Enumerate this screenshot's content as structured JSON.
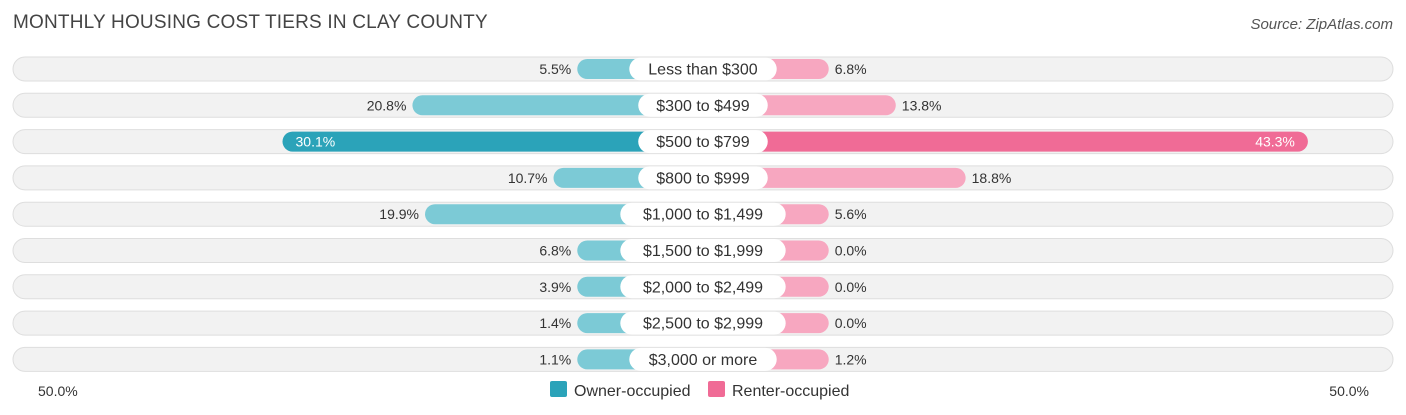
{
  "title": "MONTHLY HOUSING COST TIERS IN CLAY COUNTY",
  "source": "Source: ZipAtlas.com",
  "colors": {
    "owner_strong": "#2ba3b9",
    "owner_light": "#7ccad6",
    "renter_strong": "#f06b96",
    "renter_light": "#f7a7c0"
  },
  "chart_data": {
    "type": "bar",
    "orientation": "diverging-horizontal",
    "categories": [
      "Less than $300",
      "$300 to $499",
      "$500 to $799",
      "$800 to $999",
      "$1,000 to $1,499",
      "$1,500 to $1,999",
      "$2,000 to $2,499",
      "$2,500 to $2,999",
      "$3,000 or more"
    ],
    "series": [
      {
        "name": "Owner-occupied",
        "values": [
          5.5,
          20.8,
          30.1,
          10.7,
          19.9,
          6.8,
          3.9,
          1.4,
          1.1
        ],
        "labels": [
          "5.5%",
          "20.8%",
          "30.1%",
          "10.7%",
          "19.9%",
          "6.8%",
          "3.9%",
          "1.4%",
          "1.1%"
        ]
      },
      {
        "name": "Renter-occupied",
        "values": [
          6.8,
          13.8,
          43.3,
          18.8,
          5.6,
          0.0,
          0.0,
          0.0,
          1.2
        ],
        "labels": [
          "6.8%",
          "13.8%",
          "43.3%",
          "18.8%",
          "5.6%",
          "0.0%",
          "0.0%",
          "0.0%",
          "1.2%"
        ]
      }
    ],
    "axis": {
      "min_label": "50.0%",
      "max_label": "50.0%",
      "range": [
        -50,
        50
      ]
    },
    "legend_position": "bottom-center"
  }
}
